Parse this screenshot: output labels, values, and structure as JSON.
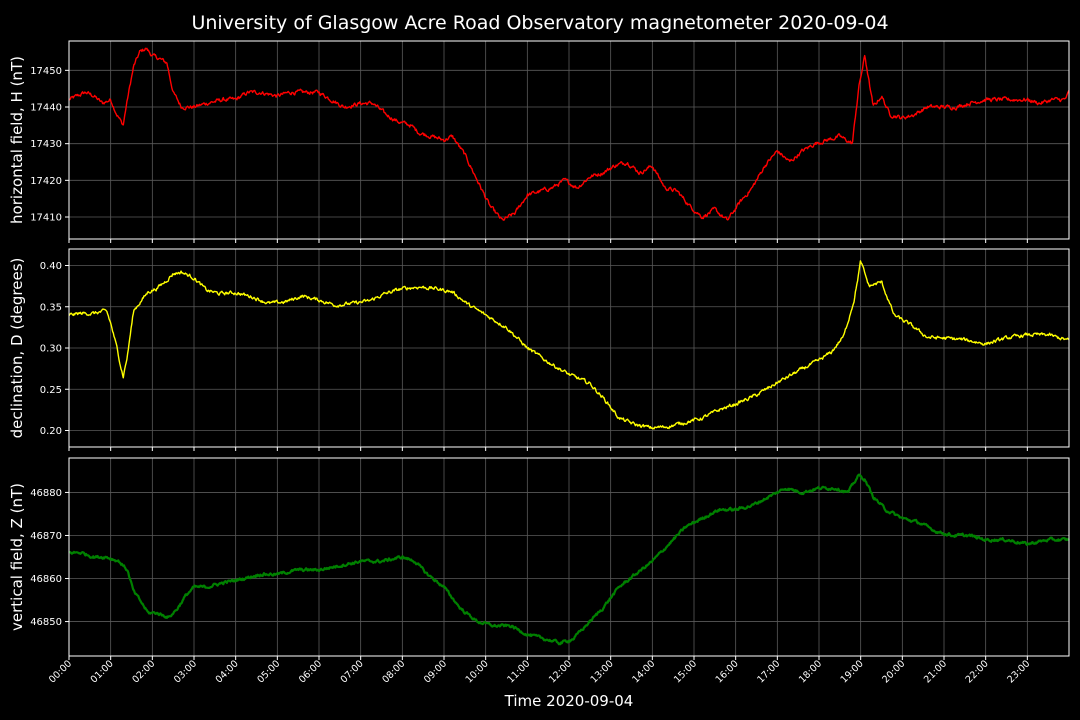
{
  "title": "University of Glasgow Acre Road Observatory magnetometer 2020-09-04",
  "xlabel": "Time 2020-09-04",
  "chart_data": [
    {
      "type": "line",
      "ylabel": "horizontal field, H (nT)",
      "color": "#ff0000",
      "ylim": [
        17404,
        17458
      ],
      "yticks": [
        17410,
        17420,
        17430,
        17440,
        17450
      ],
      "x_hours": [
        0,
        0.2,
        0.4,
        0.6,
        0.8,
        1.0,
        1.15,
        1.3,
        1.4,
        1.55,
        1.7,
        1.85,
        2.0,
        2.2,
        2.35,
        2.5,
        2.7,
        3.0,
        3.3,
        3.7,
        4.0,
        4.3,
        4.6,
        5.0,
        5.3,
        5.7,
        6.0,
        6.3,
        6.6,
        7.0,
        7.3,
        7.6,
        7.9,
        8.2,
        8.4,
        8.7,
        9.0,
        9.2,
        9.5,
        9.8,
        10.1,
        10.4,
        10.7,
        11.0,
        11.3,
        11.6,
        11.9,
        12.2,
        12.5,
        12.8,
        13.1,
        13.4,
        13.7,
        14.0,
        14.3,
        14.6,
        14.9,
        15.2,
        15.5,
        15.8,
        16.1,
        16.4,
        16.7,
        17.0,
        17.3,
        17.6,
        17.9,
        18.2,
        18.5,
        18.8,
        18.95,
        19.1,
        19.3,
        19.5,
        19.7,
        20.0,
        20.3,
        20.6,
        21.0,
        21.3,
        21.6,
        22.0,
        22.3,
        22.6,
        23.0,
        23.3,
        23.6,
        23.9,
        24.0
      ],
      "values": [
        17442,
        17443,
        17444,
        17443,
        17441,
        17442,
        17438,
        17435,
        17442,
        17451,
        17455,
        17456,
        17454,
        17453,
        17452,
        17444,
        17440,
        17440,
        17441,
        17442,
        17442,
        17444,
        17444,
        17443,
        17444,
        17444,
        17444,
        17442,
        17440,
        17441,
        17441,
        17438,
        17436,
        17435,
        17433,
        17432,
        17431,
        17432,
        17427,
        17420,
        17413,
        17409,
        17411,
        17416,
        17417,
        17418,
        17420,
        17418,
        17421,
        17422,
        17424,
        17425,
        17422,
        17424,
        17418,
        17417,
        17413,
        17410,
        17412,
        17409,
        17414,
        17418,
        17424,
        17428,
        17425,
        17428,
        17430,
        17431,
        17432,
        17430,
        17445,
        17454,
        17440,
        17443,
        17438,
        17437,
        17438,
        17440,
        17440,
        17440,
        17441,
        17442,
        17442,
        17442,
        17442,
        17441,
        17442,
        17442,
        17444
      ]
    },
    {
      "type": "line",
      "ylabel": "declination, D (degrees)",
      "color": "#ffff00",
      "ylim": [
        0.18,
        0.42
      ],
      "yticks": [
        0.2,
        0.25,
        0.3,
        0.35,
        0.4
      ],
      "x_hours": [
        0,
        0.3,
        0.6,
        0.9,
        1.0,
        1.15,
        1.3,
        1.4,
        1.55,
        1.7,
        1.9,
        2.1,
        2.3,
        2.5,
        2.7,
        3.0,
        3.3,
        3.6,
        4.0,
        4.4,
        4.8,
        5.2,
        5.6,
        6.0,
        6.4,
        6.8,
        7.2,
        7.6,
        8.0,
        8.4,
        8.8,
        9.2,
        9.6,
        10.0,
        10.5,
        11.0,
        11.5,
        12.0,
        12.5,
        12.9,
        13.2,
        13.6,
        14.0,
        14.4,
        14.8,
        15.2,
        15.6,
        16.0,
        16.5,
        17.0,
        17.5,
        18.0,
        18.3,
        18.6,
        18.85,
        19.0,
        19.2,
        19.5,
        19.8,
        20.2,
        20.6,
        21.0,
        21.5,
        22.0,
        22.5,
        23.0,
        23.5,
        24.0
      ],
      "values": [
        0.34,
        0.342,
        0.342,
        0.345,
        0.33,
        0.3,
        0.265,
        0.29,
        0.345,
        0.355,
        0.368,
        0.372,
        0.38,
        0.39,
        0.392,
        0.385,
        0.37,
        0.366,
        0.367,
        0.362,
        0.354,
        0.356,
        0.363,
        0.358,
        0.352,
        0.354,
        0.357,
        0.366,
        0.372,
        0.374,
        0.372,
        0.368,
        0.352,
        0.34,
        0.325,
        0.3,
        0.283,
        0.268,
        0.257,
        0.235,
        0.215,
        0.207,
        0.203,
        0.205,
        0.21,
        0.215,
        0.225,
        0.232,
        0.243,
        0.258,
        0.272,
        0.285,
        0.295,
        0.315,
        0.36,
        0.405,
        0.375,
        0.38,
        0.34,
        0.328,
        0.313,
        0.312,
        0.31,
        0.305,
        0.312,
        0.316,
        0.316,
        0.309
      ]
    },
    {
      "type": "line",
      "ylabel": "vertical field, Z (nT)",
      "color": "#008000",
      "ylim": [
        46842,
        46888
      ],
      "yticks": [
        46850,
        46860,
        46870,
        46880
      ],
      "x_hours": [
        0,
        0.3,
        0.6,
        0.9,
        1.2,
        1.4,
        1.55,
        1.7,
        1.9,
        2.1,
        2.4,
        2.6,
        2.8,
        3.0,
        3.3,
        3.7,
        4.2,
        4.6,
        5.0,
        5.5,
        6.0,
        6.5,
        7.0,
        7.5,
        8.0,
        8.3,
        8.6,
        9.0,
        9.4,
        9.8,
        10.2,
        10.6,
        11.0,
        11.4,
        11.8,
        12.1,
        12.4,
        12.8,
        13.2,
        13.6,
        14.0,
        14.4,
        14.8,
        15.2,
        15.6,
        16.0,
        16.4,
        16.8,
        17.2,
        17.6,
        18.0,
        18.4,
        18.7,
        18.95,
        19.1,
        19.3,
        19.6,
        20.0,
        20.4,
        20.8,
        21.2,
        21.6,
        22.0,
        22.5,
        23.0,
        23.5,
        24.0
      ],
      "values": [
        46866,
        46866,
        46865,
        46865,
        46864,
        46862,
        46857,
        46855,
        46852,
        46852,
        46851,
        46853,
        46856,
        46858,
        46858,
        46859,
        46860,
        46861,
        46861,
        46862,
        46862,
        46863,
        46864,
        46864,
        46865,
        46864,
        46861,
        46858,
        46853,
        46850,
        46849,
        46849,
        46847,
        46846,
        46845,
        46846,
        46849,
        46853,
        46858,
        46861,
        46864,
        46868,
        46872,
        46874,
        46876,
        46876,
        46877,
        46879,
        46881,
        46880,
        46881,
        46881,
        46880,
        46884,
        46883,
        46879,
        46876,
        46874,
        46873,
        46871,
        46870,
        46870,
        46869,
        46869,
        46868,
        46869,
        46869
      ]
    }
  ],
  "x_ticks": [
    "00:00",
    "01:00",
    "02:00",
    "03:00",
    "04:00",
    "05:00",
    "06:00",
    "07:00",
    "08:00",
    "09:00",
    "10:00",
    "11:00",
    "12:00",
    "13:00",
    "14:00",
    "15:00",
    "16:00",
    "17:00",
    "18:00",
    "19:00",
    "20:00",
    "21:00",
    "22:00",
    "23:00"
  ],
  "x_range_hours": [
    0,
    24
  ]
}
